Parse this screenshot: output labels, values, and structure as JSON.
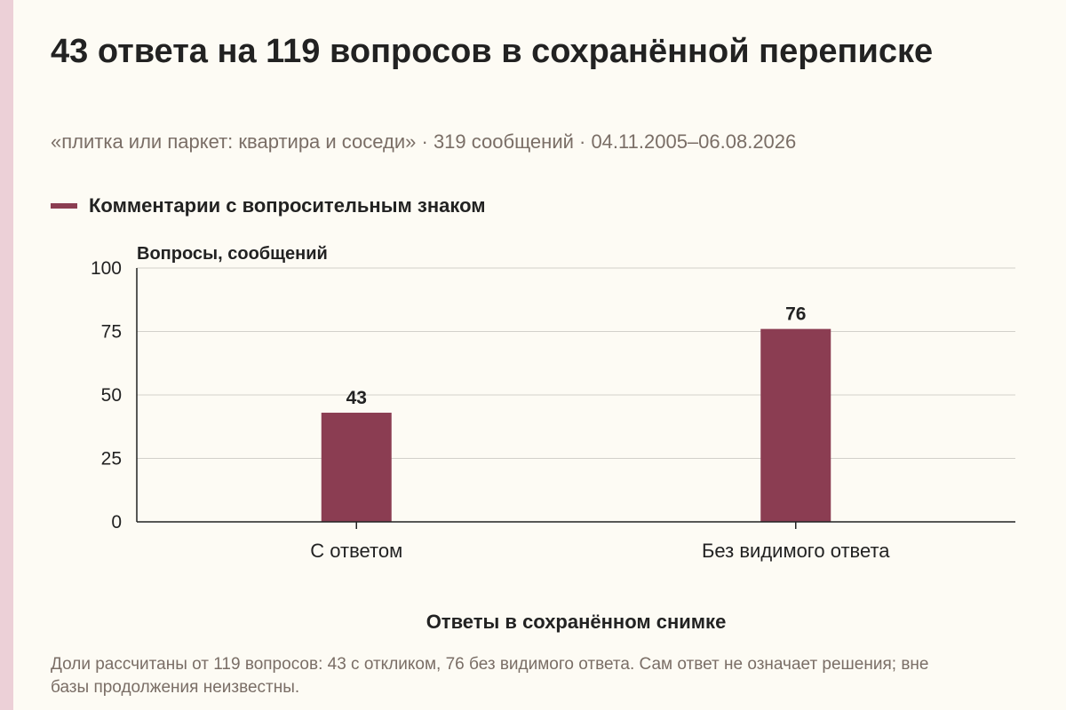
{
  "title": "43 ответа на 119 вопросов в сохранённой переписке",
  "subtitle": "«плитка или паркет: квартира и соседи» · 319 сообщений · 04.11.2005–06.08.2026",
  "note": "Доли рассчитаны от 119 вопросов: 43 с откликом, 76 без видимого ответа. Сам ответ не означает решения; вне базы продолжения неизвестны.",
  "colors": {
    "bar": "#8b3d52",
    "background": "#fdfbf4",
    "stripe": "#ecd0d7",
    "muted_text": "#7a6e66"
  },
  "chart_data": {
    "type": "bar",
    "categories": [
      "С ответом",
      "Без видимого ответа"
    ],
    "series": [
      {
        "name": "Комментарии с вопросительным знаком",
        "values": [
          43,
          76
        ]
      }
    ],
    "ylabel": "Вопросы, сообщений",
    "xlabel": "Ответы в сохранённом снимке",
    "ylim": [
      0,
      100
    ],
    "yticks": [
      0,
      25,
      50,
      75,
      100
    ],
    "grid": true,
    "legend": "top-left",
    "data_labels": true
  }
}
